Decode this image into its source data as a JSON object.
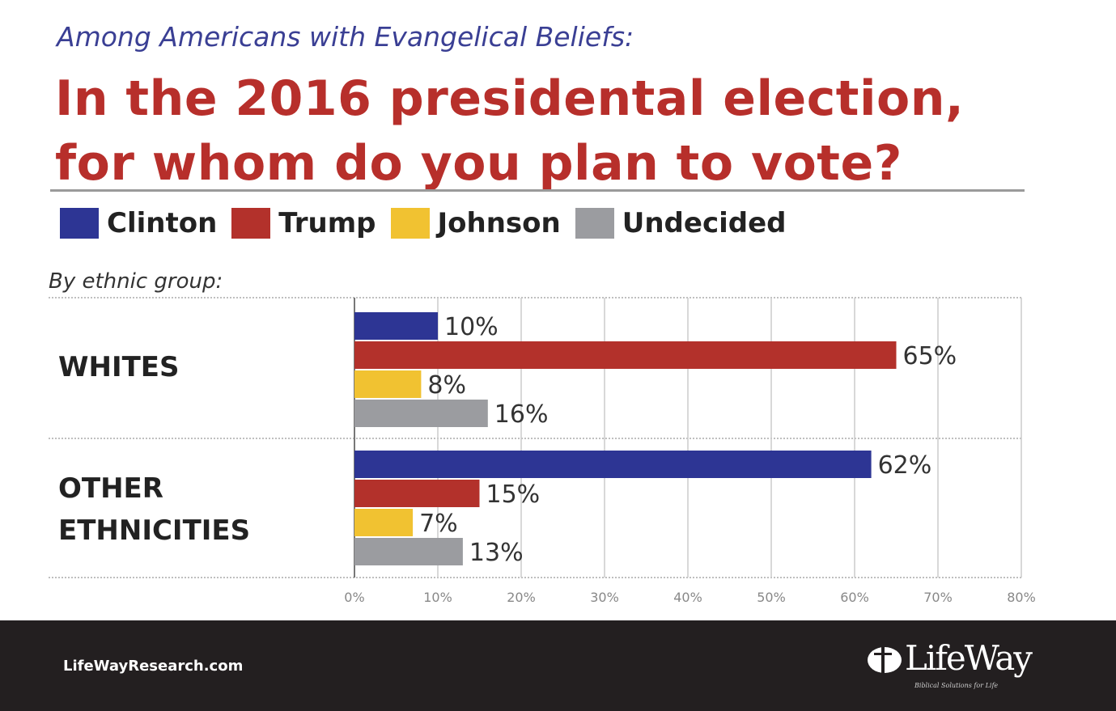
{
  "header": {
    "subtitle": "Among Americans with Evangelical Beliefs:",
    "title_line1": "In the 2016 presidental election,",
    "title_line2": "for whom do you plan to vote?"
  },
  "group_heading": "By ethnic group:",
  "chart_data": {
    "type": "bar",
    "orientation": "horizontal",
    "title": "In the 2016 presidental election, for whom do you plan to vote?",
    "categories": [
      "WHITES",
      "OTHER ETHNICITIES"
    ],
    "category_lines": [
      [
        "WHITES"
      ],
      [
        "OTHER",
        "ETHNICITIES"
      ]
    ],
    "series": [
      {
        "name": "Clinton",
        "color": "#2d3594",
        "values": [
          10,
          62
        ]
      },
      {
        "name": "Trump",
        "color": "#b3312b",
        "values": [
          65,
          15
        ]
      },
      {
        "name": "Johnson",
        "color": "#f1c231",
        "values": [
          8,
          7
        ]
      },
      {
        "name": "Undecided",
        "color": "#9b9ca0",
        "values": [
          16,
          13
        ]
      }
    ],
    "value_format": "percent",
    "xlim": [
      0,
      80
    ],
    "xticks": [
      "0%",
      "10%",
      "20%",
      "30%",
      "40%",
      "50%",
      "60%",
      "70%",
      "80%"
    ],
    "grid": true,
    "legend_placement": "top"
  },
  "footer": {
    "site": "LifeWayResearch.com",
    "logo_name": "LifeWay",
    "logo_tagline": "Biblical Solutions for Life"
  }
}
